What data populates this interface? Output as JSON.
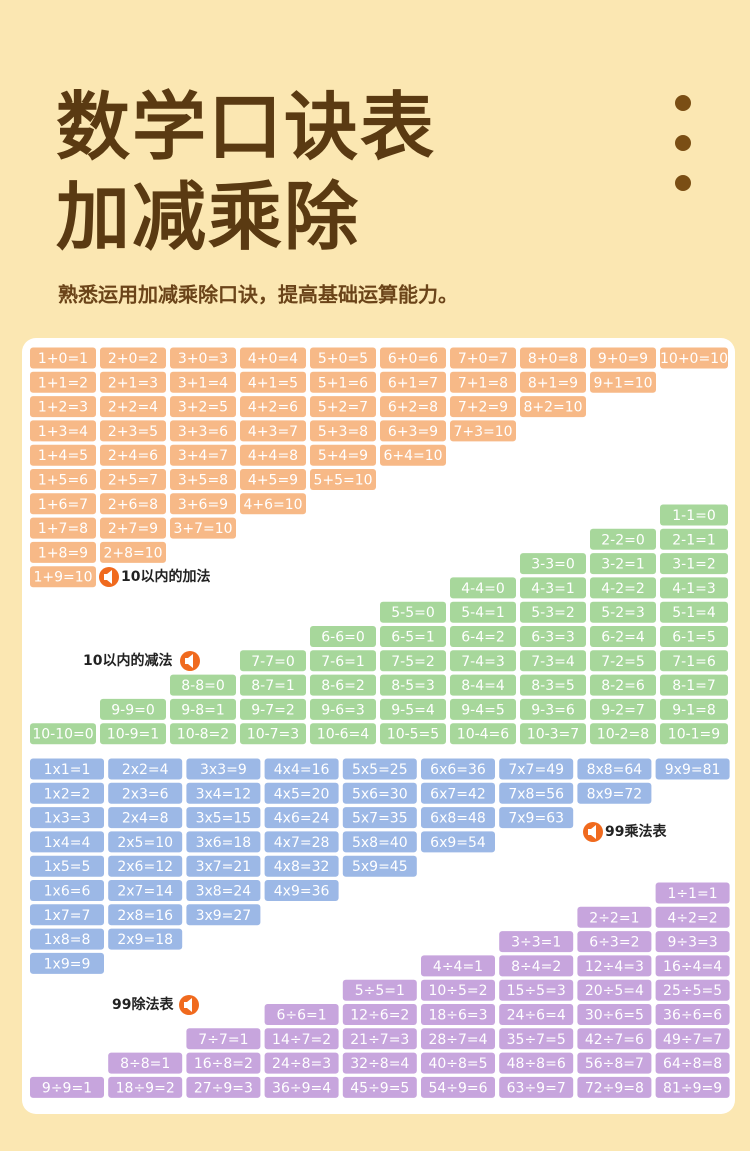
{
  "header": {
    "title_line1": "数学口诀表",
    "title_line2": "加减乘除",
    "subtitle": "熟悉运用加减乘除口诀，提高基础运算能力。"
  },
  "addition": {
    "label": "10以内的加法",
    "columns": [
      [
        "1+0=1",
        "1+1=2",
        "1+2=3",
        "1+3=4",
        "1+4=5",
        "1+5=6",
        "1+6=7",
        "1+7=8",
        "1+8=9",
        "1+9=10"
      ],
      [
        "2+0=2",
        "2+1=3",
        "2+2=4",
        "2+3=5",
        "2+4=6",
        "2+5=7",
        "2+6=8",
        "2+7=9",
        "2+8=10"
      ],
      [
        "3+0=3",
        "3+1=4",
        "3+2=5",
        "3+3=6",
        "3+4=7",
        "3+5=8",
        "3+6=9",
        "3+7=10"
      ],
      [
        "4+0=4",
        "4+1=5",
        "4+2=6",
        "4+3=7",
        "4+4=8",
        "4+5=9",
        "4+6=10"
      ],
      [
        "5+0=5",
        "5+1=6",
        "5+2=7",
        "5+3=8",
        "5+4=9",
        "5+5=10"
      ],
      [
        "6+0=6",
        "6+1=7",
        "6+2=8",
        "6+3=9",
        "6+4=10"
      ],
      [
        "7+0=7",
        "7+1=8",
        "7+2=9",
        "7+3=10"
      ],
      [
        "8+0=8",
        "8+1=9",
        "8+2=10"
      ],
      [
        "9+0=9",
        "9+1=10"
      ],
      [
        "10+0=10"
      ]
    ]
  },
  "subtraction": {
    "label": "10以内的减法",
    "rows": [
      [
        "1-1=0"
      ],
      [
        "2-2=0",
        "2-1=1"
      ],
      [
        "3-3=0",
        "3-2=1",
        "3-1=2"
      ],
      [
        "4-4=0",
        "4-3=1",
        "4-2=2",
        "4-1=3"
      ],
      [
        "5-5=0",
        "5-4=1",
        "5-3=2",
        "5-2=3",
        "5-1=4"
      ],
      [
        "6-6=0",
        "6-5=1",
        "6-4=2",
        "6-3=3",
        "6-2=4",
        "6-1=5"
      ],
      [
        "7-7=0",
        "7-6=1",
        "7-5=2",
        "7-4=3",
        "7-3=4",
        "7-2=5",
        "7-1=6"
      ],
      [
        "8-8=0",
        "8-7=1",
        "8-6=2",
        "8-5=3",
        "8-4=4",
        "8-3=5",
        "8-2=6",
        "8-1=7"
      ],
      [
        "9-9=0",
        "9-8=1",
        "9-7=2",
        "9-6=3",
        "9-5=4",
        "9-4=5",
        "9-3=6",
        "9-2=7",
        "9-1=8"
      ],
      [
        "10-10=0",
        "10-9=1",
        "10-8=2",
        "10-7=3",
        "10-6=4",
        "10-5=5",
        "10-4=6",
        "10-3=7",
        "10-2=8",
        "10-1=9"
      ]
    ]
  },
  "multiplication": {
    "label": "99乘法表",
    "columns": [
      [
        "1x1=1",
        "1x2=2",
        "1x3=3",
        "1x4=4",
        "1x5=5",
        "1x6=6",
        "1x7=7",
        "1x8=8",
        "1x9=9"
      ],
      [
        "2x2=4",
        "2x3=6",
        "2x4=8",
        "2x5=10",
        "2x6=12",
        "2x7=14",
        "2x8=16",
        "2x9=18"
      ],
      [
        "3x3=9",
        "3x4=12",
        "3x5=15",
        "3x6=18",
        "3x7=21",
        "3x8=24",
        "3x9=27"
      ],
      [
        "4x4=16",
        "4x5=20",
        "4x6=24",
        "4x7=28",
        "4x8=32",
        "4x9=36"
      ],
      [
        "5x5=25",
        "5x6=30",
        "5x7=35",
        "5x8=40",
        "5x9=45"
      ],
      [
        "6x6=36",
        "6x7=42",
        "6x8=48",
        "6x9=54"
      ],
      [
        "7x7=49",
        "7x8=56",
        "7x9=63"
      ],
      [
        "8x8=64",
        "8x9=72"
      ],
      [
        "9x9=81"
      ]
    ]
  },
  "division": {
    "label": "99除法表",
    "rows": [
      [
        "1÷1=1"
      ],
      [
        "2÷2=1",
        "4÷2=2"
      ],
      [
        "3÷3=1",
        "6÷3=2",
        "9÷3=3"
      ],
      [
        "4÷4=1",
        "8÷4=2",
        "12÷4=3",
        "16÷4=4"
      ],
      [
        "5÷5=1",
        "10÷5=2",
        "15÷5=3",
        "20÷5=4",
        "25÷5=5"
      ],
      [
        "6÷6=1",
        "12÷6=2",
        "18÷6=3",
        "24÷6=4",
        "30÷6=5",
        "36÷6=6"
      ],
      [
        "7÷7=1",
        "14÷7=2",
        "21÷7=3",
        "28÷7=4",
        "35÷7=5",
        "42÷7=6",
        "49÷7=7"
      ],
      [
        "8÷8=1",
        "16÷8=2",
        "24÷8=3",
        "32÷8=4",
        "40÷8=5",
        "48÷8=6",
        "56÷8=7",
        "64÷8=8"
      ],
      [
        "9÷9=1",
        "18÷9=2",
        "27÷9=3",
        "36÷9=4",
        "45÷9=5",
        "54÷9=6",
        "63÷9=7",
        "72÷9=8",
        "81÷9=9"
      ]
    ]
  }
}
